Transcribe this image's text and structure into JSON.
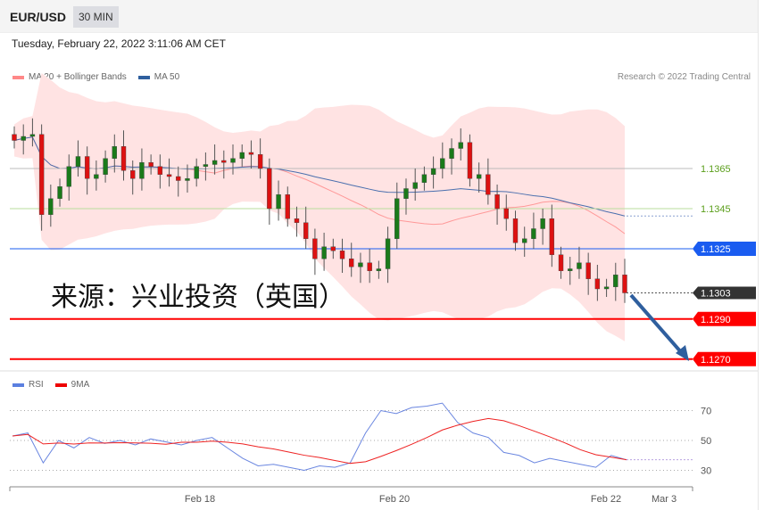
{
  "header": {
    "symbol": "EUR/USD",
    "timeframe": "30 MIN"
  },
  "timestamp": "Tuesday, February 22, 2022 3:11:06 AM CET",
  "legend": {
    "ma20": "MA 20 + Bollinger Bands",
    "ma50": "MA 50",
    "rsi": "RSI",
    "rsi_ma": "9MA"
  },
  "credit": "Research © 2022 Trading Central",
  "watermark": "来源：兴业投资（英国）",
  "colors": {
    "resistance": "#5a9e1a",
    "pivot": "#1a5cf0",
    "support": "#ff0000",
    "last": "#333333",
    "arrow": "#2f5f9e",
    "up": "#1a7a1a",
    "down": "#dd1111"
  },
  "levels": [
    {
      "label": "1.1365",
      "price": 1.1365,
      "type": "resistance"
    },
    {
      "label": "1.1345",
      "price": 1.1345,
      "type": "resistance"
    },
    {
      "label": "1.1325",
      "price": 1.1325,
      "type": "pivot"
    },
    {
      "label": "1.1303",
      "price": 1.1303,
      "type": "last"
    },
    {
      "label": "1.1290",
      "price": 1.129,
      "type": "support"
    },
    {
      "label": "1.1270",
      "price": 1.127,
      "type": "support"
    }
  ],
  "chart_data": {
    "type": "candlestick",
    "closes": [
      1.1379,
      1.1381,
      1.1382,
      1.1342,
      1.135,
      1.1356,
      1.1366,
      1.1371,
      1.136,
      1.1362,
      1.137,
      1.1376,
      1.1364,
      1.136,
      1.1368,
      1.1366,
      1.1362,
      1.1361,
      1.1359,
      1.136,
      1.1366,
      1.1367,
      1.1369,
      1.1368,
      1.137,
      1.1373,
      1.1372,
      1.1365,
      1.1345,
      1.1352,
      1.134,
      1.1338,
      1.133,
      1.132,
      1.1326,
      1.1324,
      1.132,
      1.1316,
      1.1318,
      1.1314,
      1.1315,
      1.133,
      1.135,
      1.1355,
      1.1358,
      1.1362,
      1.1365,
      1.137,
      1.1375,
      1.1378,
      1.136,
      1.1362,
      1.1352,
      1.1345,
      1.134,
      1.1328,
      1.133,
      1.1335,
      1.134,
      1.1322,
      1.1314,
      1.1315,
      1.1318,
      1.131,
      1.1305,
      1.1306,
      1.1312,
      1.1303
    ],
    "rsi": [
      53,
      55,
      35,
      50,
      45,
      52,
      48,
      50,
      47,
      51,
      49,
      47,
      50,
      52,
      45,
      38,
      33,
      34,
      32,
      30,
      33,
      32,
      35,
      55,
      70,
      68,
      72,
      73,
      75,
      62,
      55,
      52,
      42,
      40,
      35,
      38,
      36,
      34,
      32,
      40,
      37
    ],
    "rsi_ticks": [
      "70",
      "50",
      "30"
    ],
    "x_ticks": [
      "Feb 18",
      "Feb 20",
      "Feb 22",
      "Mar 3"
    ]
  }
}
